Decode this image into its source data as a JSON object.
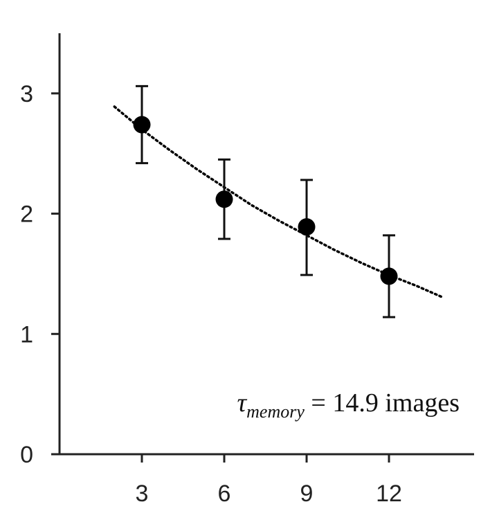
{
  "chart_data": {
    "type": "scatter",
    "x_ticks": [
      "3",
      "6",
      "9",
      "12"
    ],
    "y_ticks": [
      "0",
      "1",
      "2",
      "3"
    ],
    "xlim": [
      0,
      15.1
    ],
    "ylim": [
      0,
      3.5
    ],
    "grid": false,
    "series": [
      {
        "kind": "points_with_error_bars",
        "x": [
          3,
          6,
          9,
          12
        ],
        "y": [
          2.74,
          2.12,
          1.89,
          1.48
        ],
        "y_err_low": [
          2.42,
          1.79,
          1.49,
          1.14
        ],
        "y_err_high": [
          3.06,
          2.45,
          2.28,
          1.82
        ],
        "color": "#000000"
      },
      {
        "kind": "fit_curve",
        "style": "dotted",
        "x": [
          2.0,
          3.0,
          4.0,
          5.0,
          6.0,
          7.0,
          8.0,
          9.0,
          10.0,
          11.0,
          12.0,
          13.0,
          13.9
        ],
        "y": [
          2.89,
          2.7,
          2.53,
          2.37,
          2.22,
          2.07,
          1.94,
          1.82,
          1.7,
          1.59,
          1.49,
          1.4,
          1.31
        ],
        "color": "#000000"
      }
    ],
    "annotation": {
      "symbol": "τ",
      "subscript": "memory",
      "text": " = 14.9 images"
    }
  }
}
